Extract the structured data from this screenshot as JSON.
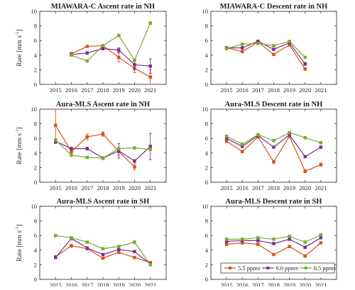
{
  "colors": {
    "5.5ppmv": "#d95319",
    "6.0ppmv": "#7e2f8e",
    "6.5ppmv": "#77ac30"
  },
  "y_axis_label": "Rate [mm s",
  "y_axis_label_sup": "-1",
  "y_axis_label_end": "]",
  "legend": {
    "placement": "lower-right of bottom-right panel",
    "entries": [
      "5.5 ppmv",
      "6.0 ppmv",
      "6.5 ppmv"
    ]
  },
  "chart_data": [
    {
      "type": "line",
      "title": "MIAWARA-C Ascent rate in NH",
      "x": [
        2015,
        2016,
        2017,
        2018,
        2019,
        2020,
        2021
      ],
      "xlim": [
        2014,
        2022
      ],
      "ylim": [
        0,
        10
      ],
      "yticks": [
        0,
        2,
        4,
        6,
        8,
        10
      ],
      "show_y_label": true,
      "grid": false,
      "series": [
        {
          "key": "5.5ppmv",
          "values": [
            null,
            4.2,
            5.2,
            5.3,
            3.7,
            2.2,
            1.0
          ],
          "errors": [
            null,
            0.15,
            0.15,
            0.15,
            0.6,
            0.6,
            1.0
          ]
        },
        {
          "key": "6.0ppmv",
          "values": [
            null,
            4.1,
            4.3,
            4.9,
            4.7,
            2.7,
            2.5
          ],
          "errors": [
            null,
            0.15,
            0.15,
            0.2,
            0.3,
            0.7,
            1.0
          ]
        },
        {
          "key": "6.5ppmv",
          "values": [
            null,
            4.0,
            3.2,
            5.3,
            6.7,
            3.3,
            8.4
          ],
          "errors": [
            null,
            0.1,
            0.1,
            0.1,
            0.15,
            0.2,
            0.2
          ]
        }
      ]
    },
    {
      "type": "line",
      "title": "MIAWARA-C Descent rate in NH",
      "x": [
        2015,
        2016,
        2017,
        2018,
        2019,
        2020,
        2021
      ],
      "xlim": [
        2014,
        2022
      ],
      "ylim": [
        0,
        10
      ],
      "yticks": [
        0,
        2,
        4,
        6,
        8,
        10
      ],
      "show_y_label": false,
      "grid": false,
      "series": [
        {
          "key": "5.5ppmv",
          "values": [
            5.0,
            4.5,
            5.8,
            4.1,
            5.4,
            2.1,
            null
          ],
          "errors": [
            0.15,
            0.15,
            0.15,
            0.15,
            0.15,
            0.15,
            null
          ]
        },
        {
          "key": "6.0ppmv",
          "values": [
            5.0,
            5.0,
            5.9,
            4.8,
            5.7,
            2.8,
            null
          ],
          "errors": [
            0.15,
            0.15,
            0.15,
            0.15,
            0.15,
            0.2,
            null
          ]
        },
        {
          "key": "6.5ppmv",
          "values": [
            4.9,
            5.5,
            5.6,
            5.3,
            5.9,
            3.7,
            null
          ],
          "errors": [
            0.1,
            0.1,
            0.1,
            0.1,
            0.1,
            0.1,
            null
          ]
        }
      ]
    },
    {
      "type": "line",
      "title": "Aura-MLS Ascent rate in NH",
      "x": [
        2015,
        2016,
        2017,
        2018,
        2019,
        2020,
        2021
      ],
      "xlim": [
        2014,
        2022
      ],
      "ylim": [
        0,
        10
      ],
      "yticks": [
        0,
        2,
        4,
        6,
        8,
        10
      ],
      "show_y_label": true,
      "grid": false,
      "series": [
        {
          "key": "5.5ppmv",
          "values": [
            7.8,
            4.2,
            6.2,
            6.6,
            4.2,
            2.1,
            null
          ],
          "errors": [
            2.5,
            0.3,
            0.4,
            0.3,
            0.5,
            0.4,
            null
          ]
        },
        {
          "key": "6.0ppmv",
          "values": [
            5.6,
            4.6,
            4.6,
            3.3,
            4.3,
            2.9,
            4.9
          ],
          "errors": [
            0.3,
            0.2,
            0.2,
            0.2,
            1.0,
            0.2,
            1.8
          ]
        },
        {
          "key": "6.5ppmv",
          "values": [
            5.8,
            3.7,
            3.4,
            3.3,
            4.6,
            4.7,
            4.5
          ],
          "errors": [
            0.15,
            0.1,
            0.1,
            0.1,
            0.15,
            0.1,
            0.2
          ]
        }
      ]
    },
    {
      "type": "line",
      "title": "Aura-MLS Descent rate in NH",
      "x": [
        2015,
        2016,
        2017,
        2018,
        2019,
        2020,
        2021
      ],
      "xlim": [
        2014,
        2022
      ],
      "ylim": [
        0,
        10
      ],
      "yticks": [
        0,
        2,
        4,
        6,
        8,
        10
      ],
      "show_y_label": false,
      "grid": false,
      "series": [
        {
          "key": "5.5ppmv",
          "values": [
            5.6,
            4.2,
            6.2,
            2.8,
            6.3,
            1.5,
            2.4
          ],
          "errors": [
            0.15,
            0.15,
            0.15,
            0.2,
            0.2,
            0.2,
            0.2
          ]
        },
        {
          "key": "6.0ppmv",
          "values": [
            6.0,
            4.9,
            6.4,
            4.8,
            6.5,
            3.5,
            4.8
          ],
          "errors": [
            0.15,
            0.15,
            0.15,
            0.15,
            0.15,
            0.15,
            0.15
          ]
        },
        {
          "key": "6.5ppmv",
          "values": [
            6.3,
            5.2,
            6.5,
            5.7,
            6.8,
            6.1,
            5.4
          ],
          "errors": [
            0.1,
            0.1,
            0.1,
            0.1,
            0.1,
            0.1,
            0.1
          ]
        }
      ]
    },
    {
      "type": "line",
      "title": "Aura-MLS Ascent rate in SH",
      "x": [
        2015,
        2016,
        2017,
        2018,
        2019,
        2020,
        2021
      ],
      "xlim": [
        2014,
        2022
      ],
      "ylim": [
        0,
        10
      ],
      "yticks": [
        0,
        2,
        4,
        6,
        8,
        10
      ],
      "show_y_label": true,
      "grid": false,
      "series": [
        {
          "key": "5.5ppmv",
          "values": [
            3.1,
            4.6,
            4.2,
            2.9,
            3.7,
            3.0,
            2.3
          ],
          "errors": [
            0.15,
            0.2,
            0.15,
            0.15,
            0.15,
            0.15,
            0.15
          ]
        },
        {
          "key": "6.0ppmv",
          "values": [
            3.0,
            5.6,
            4.3,
            3.4,
            4.1,
            3.8,
            2.1
          ],
          "errors": [
            0.15,
            0.15,
            0.15,
            0.15,
            0.15,
            0.15,
            0.15
          ]
        },
        {
          "key": "6.5ppmv",
          "values": [
            6.0,
            5.7,
            5.1,
            4.2,
            4.5,
            5.1,
            2.0
          ],
          "errors": [
            0.1,
            0.1,
            0.1,
            0.1,
            0.1,
            0.1,
            0.1
          ]
        }
      ]
    },
    {
      "type": "line",
      "title": "Aura-MLS Descent rate in SH",
      "x": [
        2015,
        2016,
        2017,
        2018,
        2019,
        2020,
        2021
      ],
      "xlim": [
        2014,
        2022
      ],
      "ylim": [
        0,
        10
      ],
      "yticks": [
        0,
        2,
        4,
        6,
        8,
        10
      ],
      "show_y_label": false,
      "grid": false,
      "series": [
        {
          "key": "5.5ppmv",
          "values": [
            4.8,
            5.0,
            4.8,
            3.4,
            4.5,
            3.2,
            5.0
          ],
          "errors": [
            0.15,
            0.15,
            0.15,
            0.15,
            0.15,
            0.15,
            0.15
          ]
        },
        {
          "key": "6.0ppmv",
          "values": [
            5.2,
            5.3,
            5.3,
            4.9,
            5.5,
            4.4,
            5.7
          ],
          "errors": [
            0.15,
            0.15,
            0.15,
            0.15,
            0.15,
            0.15,
            0.15
          ]
        },
        {
          "key": "6.5ppmv",
          "values": [
            5.5,
            5.5,
            5.7,
            5.5,
            5.9,
            5.1,
            6.1
          ],
          "errors": [
            0.1,
            0.1,
            0.1,
            0.1,
            0.1,
            0.1,
            0.1
          ]
        }
      ]
    }
  ]
}
